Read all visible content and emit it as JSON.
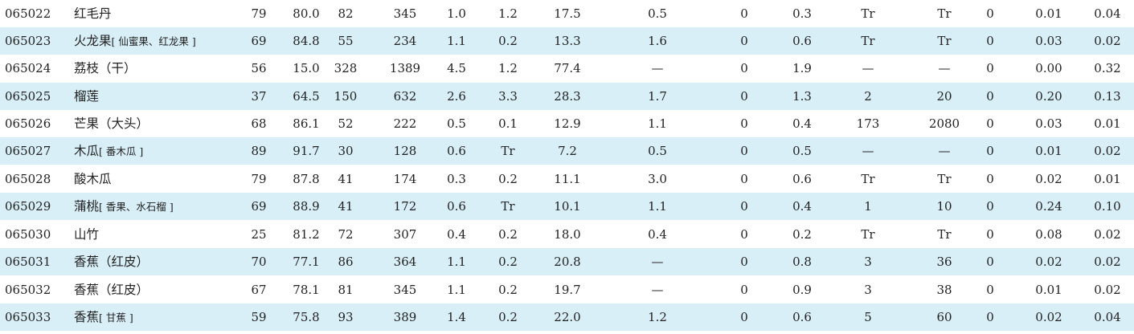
{
  "rows": [
    {
      "code": "065022",
      "name": "红毛丹",
      "alias": "",
      "edible": "79",
      "water": "80.0",
      "kcal": "82",
      "kj": "345",
      "protein": "1.0",
      "fat": "1.2",
      "cho": "17.5",
      "fiber": "0.5",
      "chol": "0",
      "ash": "0.3",
      "vita": "Tr",
      "carot": "Tr",
      "retinol": "0",
      "thiamin": "0.01",
      "ribo": "0.04",
      "shaded": false
    },
    {
      "code": "065023",
      "name": "火龙果",
      "alias": "[ 仙蜜果、红龙果 ]",
      "edible": "69",
      "water": "84.8",
      "kcal": "55",
      "kj": "234",
      "protein": "1.1",
      "fat": "0.2",
      "cho": "13.3",
      "fiber": "1.6",
      "chol": "0",
      "ash": "0.6",
      "vita": "Tr",
      "carot": "Tr",
      "retinol": "0",
      "thiamin": "0.03",
      "ribo": "0.02",
      "shaded": true
    },
    {
      "code": "065024",
      "name": "荔枝（干）",
      "alias": "",
      "edible": "56",
      "water": "15.0",
      "kcal": "328",
      "kj": "1389",
      "protein": "4.5",
      "fat": "1.2",
      "cho": "77.4",
      "fiber": "—",
      "chol": "0",
      "ash": "1.9",
      "vita": "—",
      "carot": "—",
      "retinol": "0",
      "thiamin": "0.00",
      "ribo": "0.32",
      "shaded": false
    },
    {
      "code": "065025",
      "name": "榴莲",
      "alias": "",
      "edible": "37",
      "water": "64.5",
      "kcal": "150",
      "kj": "632",
      "protein": "2.6",
      "fat": "3.3",
      "cho": "28.3",
      "fiber": "1.7",
      "chol": "0",
      "ash": "1.3",
      "vita": "2",
      "carot": "20",
      "retinol": "0",
      "thiamin": "0.20",
      "ribo": "0.13",
      "shaded": true
    },
    {
      "code": "065026",
      "name": "芒果（大头）",
      "alias": "",
      "edible": "68",
      "water": "86.1",
      "kcal": "52",
      "kj": "222",
      "protein": "0.5",
      "fat": "0.1",
      "cho": "12.9",
      "fiber": "1.1",
      "chol": "0",
      "ash": "0.4",
      "vita": "173",
      "carot": "2080",
      "retinol": "0",
      "thiamin": "0.03",
      "ribo": "0.01",
      "shaded": false
    },
    {
      "code": "065027",
      "name": "木瓜",
      "alias": "[ 番木瓜 ]",
      "edible": "89",
      "water": "91.7",
      "kcal": "30",
      "kj": "128",
      "protein": "0.6",
      "fat": "Tr",
      "cho": "7.2",
      "fiber": "0.5",
      "chol": "0",
      "ash": "0.5",
      "vita": "—",
      "carot": "—",
      "retinol": "0",
      "thiamin": "0.01",
      "ribo": "0.02",
      "shaded": true
    },
    {
      "code": "065028",
      "name": "酸木瓜",
      "alias": "",
      "edible": "79",
      "water": "87.8",
      "kcal": "41",
      "kj": "174",
      "protein": "0.3",
      "fat": "0.2",
      "cho": "11.1",
      "fiber": "3.0",
      "chol": "0",
      "ash": "0.6",
      "vita": "Tr",
      "carot": "Tr",
      "retinol": "0",
      "thiamin": "0.02",
      "ribo": "0.01",
      "shaded": false
    },
    {
      "code": "065029",
      "name": "蒲桃",
      "alias": "[ 香果、水石榴 ]",
      "edible": "69",
      "water": "88.9",
      "kcal": "41",
      "kj": "172",
      "protein": "0.6",
      "fat": "Tr",
      "cho": "10.1",
      "fiber": "1.1",
      "chol": "0",
      "ash": "0.4",
      "vita": "1",
      "carot": "10",
      "retinol": "0",
      "thiamin": "0.24",
      "ribo": "0.10",
      "shaded": true
    },
    {
      "code": "065030",
      "name": "山竹",
      "alias": "",
      "edible": "25",
      "water": "81.2",
      "kcal": "72",
      "kj": "307",
      "protein": "0.4",
      "fat": "0.2",
      "cho": "18.0",
      "fiber": "0.4",
      "chol": "0",
      "ash": "0.2",
      "vita": "Tr",
      "carot": "Tr",
      "retinol": "0",
      "thiamin": "0.08",
      "ribo": "0.02",
      "shaded": false
    },
    {
      "code": "065031",
      "name": "香蕉（红皮）",
      "alias": "",
      "edible": "70",
      "water": "77.1",
      "kcal": "86",
      "kj": "364",
      "protein": "1.1",
      "fat": "0.2",
      "cho": "20.8",
      "fiber": "—",
      "chol": "0",
      "ash": "0.8",
      "vita": "3",
      "carot": "36",
      "retinol": "0",
      "thiamin": "0.02",
      "ribo": "0.02",
      "shaded": true
    },
    {
      "code": "065032",
      "name": "香蕉（红皮）",
      "alias": "",
      "edible": "67",
      "water": "78.1",
      "kcal": "81",
      "kj": "345",
      "protein": "1.1",
      "fat": "0.2",
      "cho": "19.7",
      "fiber": "—",
      "chol": "0",
      "ash": "0.9",
      "vita": "3",
      "carot": "38",
      "retinol": "0",
      "thiamin": "0.01",
      "ribo": "0.02",
      "shaded": false
    },
    {
      "code": "065033",
      "name": "香蕉",
      "alias": "[ 甘蕉 ]",
      "edible": "59",
      "water": "75.8",
      "kcal": "93",
      "kj": "389",
      "protein": "1.4",
      "fat": "0.2",
      "cho": "22.0",
      "fiber": "1.2",
      "chol": "0",
      "ash": "0.6",
      "vita": "5",
      "carot": "60",
      "retinol": "0",
      "thiamin": "0.02",
      "ribo": "0.04",
      "shaded": true
    }
  ]
}
